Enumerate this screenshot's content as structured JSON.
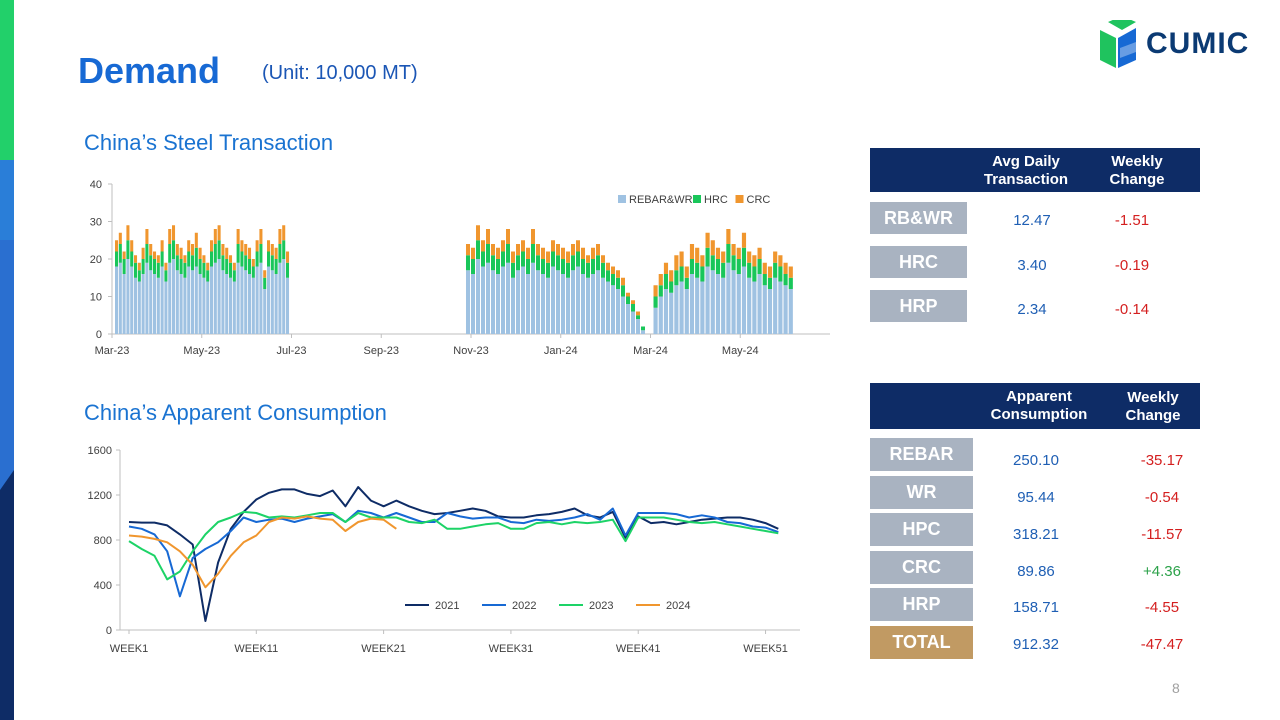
{
  "header": {
    "title": "Demand",
    "unit": "(Unit: 10,000 MT)"
  },
  "logo": {
    "text": "CUMIC"
  },
  "page_number": "8",
  "colors": {
    "accent_blue": "#1769d4",
    "navy": "#0e2c66",
    "label_gray": "#a9b3c1",
    "total_gold": "#c19a63",
    "neg": "#d41f1f",
    "pos": "#2ca24a"
  },
  "transaction": {
    "title": "China’s Steel Transaction",
    "table": {
      "col1": "Avg Daily Transaction",
      "col2": "Weekly Change",
      "rows": [
        {
          "label": "RB&WR",
          "value": "12.47",
          "change": "-1.51"
        },
        {
          "label": "HRC",
          "value": "3.40",
          "change": "-0.19"
        },
        {
          "label": "HRP",
          "value": "2.34",
          "change": "-0.14"
        }
      ]
    }
  },
  "consumption": {
    "title": "China’s Apparent Consumption",
    "table": {
      "col1": "Apparent Consumption",
      "col2": "Weekly Change",
      "rows": [
        {
          "label": "REBAR",
          "value": "250.10",
          "change": "-35.17"
        },
        {
          "label": "WR",
          "value": "95.44",
          "change": "-0.54"
        },
        {
          "label": "HPC",
          "value": "318.21",
          "change": "-11.57"
        },
        {
          "label": "CRC",
          "value": "89.86",
          "change": "+4.36"
        },
        {
          "label": "HRP",
          "value": "158.71",
          "change": "-4.55"
        },
        {
          "label": "TOTAL",
          "value": "912.32",
          "change": "-47.47"
        }
      ]
    }
  },
  "chart_data": [
    {
      "type": "bar",
      "stacked": true,
      "ylim": [
        0,
        40
      ],
      "yticks": [
        0,
        10,
        20,
        30,
        40
      ],
      "xticks": [
        "Mar-23",
        "May-23",
        "Jul-23",
        "Sep-23",
        "Nov-23",
        "Jan-24",
        "Mar-24",
        "May-24"
      ],
      "legend": [
        "REBAR&WR",
        "HRC",
        "CRC"
      ],
      "legend_position": "top-right",
      "colors": [
        "#9fc2e2",
        "#19c65a",
        "#f0962e"
      ],
      "segments": [
        {
          "start": "Mar-23",
          "rebar": [
            18,
            19,
            16,
            20,
            18,
            15,
            14,
            16,
            19,
            17,
            16,
            15,
            18,
            14,
            19,
            20,
            17,
            16,
            15,
            18,
            17,
            18,
            16,
            15,
            14,
            18,
            19,
            20,
            17,
            16,
            15,
            14,
            19,
            18,
            17,
            16,
            15,
            18,
            19,
            12,
            18,
            17,
            16,
            19,
            20,
            15
          ],
          "hrc": [
            4,
            5,
            4,
            5,
            4,
            4,
            3,
            4,
            5,
            4,
            4,
            4,
            4,
            3,
            5,
            5,
            4,
            4,
            4,
            4,
            4,
            5,
            4,
            4,
            3,
            4,
            5,
            5,
            4,
            4,
            4,
            3,
            5,
            4,
            4,
            4,
            3,
            4,
            5,
            3,
            4,
            4,
            4,
            5,
            5,
            4
          ],
          "crc": [
            3,
            3,
            2,
            4,
            3,
            2,
            2,
            3,
            4,
            3,
            2,
            2,
            3,
            2,
            4,
            4,
            3,
            3,
            2,
            3,
            3,
            4,
            3,
            2,
            2,
            3,
            4,
            4,
            3,
            3,
            2,
            2,
            4,
            3,
            3,
            3,
            2,
            3,
            4,
            2,
            3,
            3,
            3,
            4,
            4,
            3
          ]
        },
        {
          "start": "Nov-23",
          "rebar": [
            17,
            16,
            20,
            18,
            19,
            17,
            16,
            18,
            19,
            15,
            17,
            18,
            16,
            19,
            17,
            16,
            15,
            18,
            17,
            16,
            15,
            17,
            18,
            16,
            15,
            16,
            17,
            15,
            14,
            13,
            12,
            10,
            8,
            6,
            4,
            1
          ],
          "hrc": [
            4,
            4,
            5,
            4,
            5,
            4,
            4,
            4,
            5,
            4,
            4,
            4,
            4,
            5,
            4,
            4,
            4,
            4,
            4,
            4,
            4,
            4,
            4,
            4,
            4,
            4,
            4,
            4,
            3,
            3,
            3,
            3,
            2,
            2,
            1,
            1
          ],
          "crc": [
            3,
            3,
            4,
            3,
            4,
            3,
            3,
            3,
            4,
            3,
            3,
            3,
            3,
            4,
            3,
            3,
            3,
            3,
            3,
            3,
            3,
            3,
            3,
            3,
            2,
            3,
            3,
            2,
            2,
            2,
            2,
            2,
            1,
            1,
            1,
            0
          ]
        },
        {
          "start": "Mar-24",
          "rebar": [
            7,
            10,
            12,
            11,
            13,
            14,
            12,
            16,
            15,
            14,
            18,
            17,
            16,
            15,
            19,
            17,
            16,
            18,
            15,
            14,
            16,
            13,
            12,
            15,
            14,
            13,
            12
          ],
          "hrc": [
            3,
            3,
            4,
            3,
            4,
            4,
            3,
            4,
            4,
            4,
            5,
            4,
            4,
            4,
            5,
            4,
            4,
            5,
            4,
            4,
            4,
            3,
            3,
            4,
            4,
            3,
            3
          ],
          "crc": [
            3,
            3,
            3,
            3,
            4,
            4,
            3,
            4,
            4,
            3,
            4,
            4,
            3,
            3,
            4,
            3,
            3,
            4,
            3,
            3,
            3,
            3,
            3,
            3,
            3,
            3,
            3
          ]
        }
      ]
    },
    {
      "type": "line",
      "ylim": [
        0,
        1600
      ],
      "yticks": [
        0,
        400,
        800,
        1200,
        1600
      ],
      "xlim": [
        1,
        53
      ],
      "xticks": [
        "WEEK1",
        "WEEK11",
        "WEEK21",
        "WEEK31",
        "WEEK41",
        "WEEK51"
      ],
      "legend_position": "bottom-center",
      "series": [
        {
          "name": "2021",
          "color": "#0e2c66",
          "values": [
            960,
            955,
            955,
            930,
            850,
            760,
            80,
            600,
            900,
            1050,
            1160,
            1220,
            1250,
            1250,
            1210,
            1190,
            1240,
            1100,
            1270,
            1150,
            1100,
            1150,
            1100,
            1060,
            1030,
            1040,
            1060,
            1080,
            1060,
            1010,
            1000,
            1000,
            1020,
            1030,
            1050,
            1080,
            1020,
            1000,
            1050,
            820,
            1010,
            950,
            960,
            940,
            960,
            980,
            990,
            1000,
            1000,
            980,
            950,
            900
          ]
        },
        {
          "name": "2022",
          "color": "#1769d4",
          "values": [
            920,
            900,
            850,
            700,
            300,
            640,
            720,
            780,
            880,
            1000,
            960,
            980,
            990,
            960,
            990,
            1010,
            1030,
            960,
            1060,
            1040,
            1000,
            1040,
            1000,
            960,
            960,
            1040,
            1010,
            990,
            1000,
            1000,
            960,
            950,
            980,
            970,
            980,
            1000,
            1030,
            980,
            1080,
            840,
            1040,
            1040,
            1040,
            1030,
            1000,
            1020,
            1000,
            960,
            950,
            920,
            910,
            870
          ]
        },
        {
          "name": "2023",
          "color": "#1dd367",
          "values": [
            790,
            720,
            660,
            450,
            520,
            700,
            850,
            960,
            1000,
            1050,
            1040,
            1000,
            1010,
            1000,
            1020,
            1040,
            1040,
            960,
            1040,
            1000,
            1000,
            1000,
            960,
            950,
            980,
            900,
            900,
            920,
            940,
            950,
            900,
            900,
            950,
            960,
            940,
            960,
            950,
            960,
            980,
            790,
            1000,
            1000,
            1000,
            980,
            960,
            950,
            960,
            940,
            920,
            900,
            880,
            860
          ]
        },
        {
          "name": "2024",
          "color": "#f0962e",
          "values": [
            840,
            830,
            810,
            780,
            700,
            580,
            380,
            500,
            660,
            780,
            840,
            960,
            1000,
            990,
            1010,
            990,
            980,
            880,
            960,
            990,
            980,
            900
          ]
        }
      ]
    }
  ]
}
